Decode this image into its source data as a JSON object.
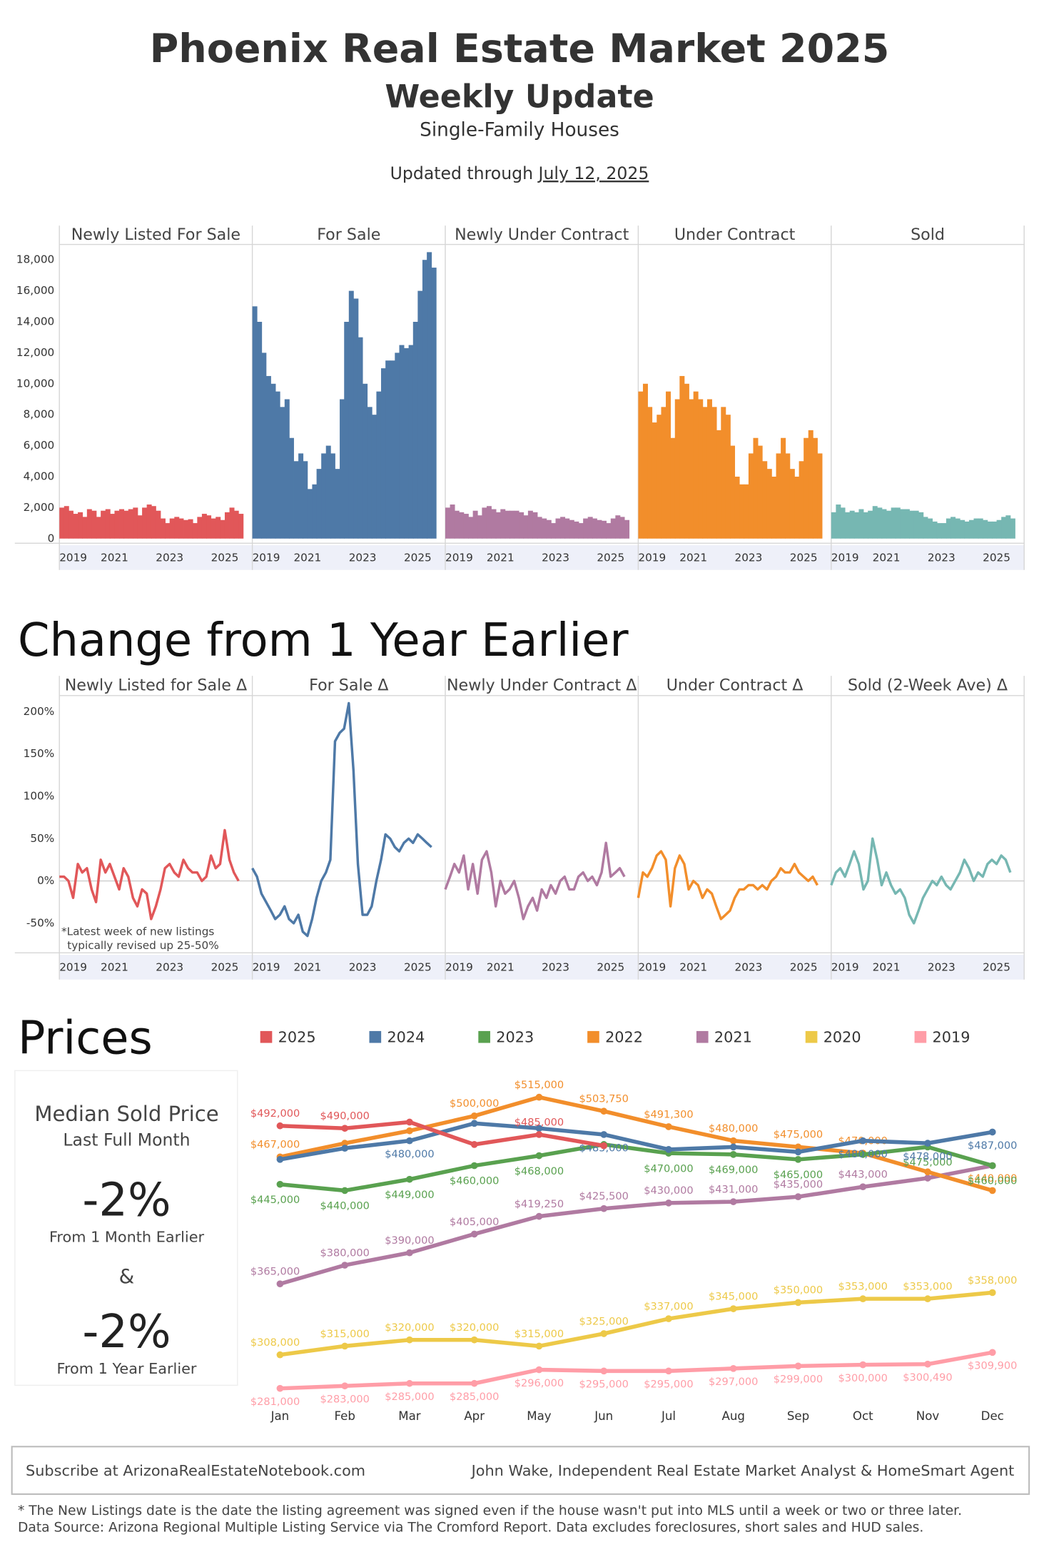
{
  "header": {
    "title": "Phoenix Real Estate Market 2025",
    "subtitle": "Weekly Update",
    "segment": "Single-Family Houses",
    "updated_prefix": "Updated through",
    "updated_date": "July 12, 2025"
  },
  "chart_data": [
    {
      "type": "bar",
      "x": [
        2019,
        2019.17,
        2019.33,
        2019.5,
        2019.67,
        2019.83,
        2020,
        2020.17,
        2020.33,
        2020.5,
        2020.67,
        2020.83,
        2021,
        2021.17,
        2021.33,
        2021.5,
        2021.67,
        2021.83,
        2022,
        2022.17,
        2022.33,
        2022.5,
        2022.67,
        2022.83,
        2023,
        2023.17,
        2023.33,
        2023.5,
        2023.67,
        2023.83,
        2024,
        2024.17,
        2024.33,
        2024.5,
        2024.67,
        2024.83,
        2025,
        2025.17,
        2025.33,
        2025.5
      ],
      "xlim": [
        2019,
        2026
      ],
      "xticks": [
        2019,
        2021,
        2023,
        2025
      ],
      "ylim": [
        -300,
        19000
      ],
      "yticks": [
        0,
        {
          "value": 2000,
          "label": "2,000"
        },
        {
          "value": 4000,
          "label": "4,000"
        },
        {
          "value": 6000,
          "label": "6,000"
        },
        {
          "value": 8000,
          "label": "8,000"
        },
        {
          "value": 10000,
          "label": "10,000"
        },
        {
          "value": 12000,
          "label": "12,000"
        },
        {
          "value": 14000,
          "label": "14,000"
        },
        {
          "value": 16000,
          "label": "16,000"
        },
        {
          "value": 18000,
          "label": "18,000"
        }
      ],
      "grid": false,
      "series": [
        {
          "name": "Newly Listed For Sale",
          "color": "#e15759",
          "values": [
            2000,
            2100,
            1800,
            1600,
            1700,
            1400,
            1900,
            1800,
            1400,
            1800,
            1900,
            1600,
            1800,
            1900,
            1800,
            1900,
            2000,
            1500,
            2000,
            2200,
            2100,
            1800,
            1300,
            1000,
            1300,
            1400,
            1300,
            1200,
            1250,
            1000,
            1400,
            1600,
            1500,
            1300,
            1400,
            1200,
            1700,
            2000,
            1800,
            1600
          ]
        },
        {
          "name": "For Sale",
          "color": "#4e79a7",
          "values": [
            15000,
            14000,
            12000,
            10500,
            10000,
            9500,
            8500,
            9000,
            6500,
            5000,
            5500,
            5000,
            3200,
            3500,
            4500,
            5500,
            6000,
            5500,
            4500,
            9000,
            14000,
            16000,
            15500,
            13000,
            10000,
            8500,
            8000,
            9500,
            11000,
            11500,
            11500,
            12000,
            12500,
            12300,
            12500,
            14000,
            16000,
            18000,
            18500,
            17500
          ]
        },
        {
          "name": "Newly Under Contract",
          "color": "#b07aa1",
          "values": [
            2000,
            2200,
            1800,
            1700,
            1600,
            1400,
            1800,
            1500,
            2000,
            2100,
            1900,
            1700,
            1900,
            1800,
            1800,
            1800,
            1700,
            1500,
            1800,
            1700,
            1400,
            1300,
            1200,
            1000,
            1300,
            1400,
            1300,
            1200,
            1100,
            1000,
            1300,
            1400,
            1300,
            1200,
            1150,
            1000,
            1300,
            1500,
            1400,
            1200
          ]
        },
        {
          "name": "Under Contract",
          "color": "#f28e2b",
          "values": [
            9500,
            10000,
            8500,
            7500,
            8000,
            8500,
            9500,
            6500,
            9000,
            10500,
            10000,
            9000,
            9500,
            9000,
            8500,
            9000,
            8500,
            7000,
            8500,
            8000,
            6000,
            4000,
            3500,
            3500,
            5500,
            6500,
            6000,
            5000,
            4500,
            4000,
            5500,
            6500,
            5500,
            4500,
            4000,
            5000,
            6500,
            7000,
            6500,
            5500
          ]
        },
        {
          "name": "Sold",
          "color": "#76b7b2",
          "values": [
            1700,
            2200,
            2000,
            1700,
            1800,
            1700,
            1900,
            1700,
            1800,
            2100,
            2000,
            1900,
            1800,
            2000,
            2000,
            1900,
            1900,
            1800,
            1800,
            1700,
            1400,
            1300,
            1100,
            1000,
            1000,
            1300,
            1400,
            1300,
            1200,
            1100,
            1200,
            1300,
            1300,
            1200,
            1100,
            1100,
            1200,
            1400,
            1500,
            1300
          ]
        }
      ]
    },
    {
      "type": "line",
      "title": "Change from 1 Year Earlier",
      "annotation": [
        "*Latest week of new listings",
        "typically revised up 25-50%"
      ],
      "x": [
        2019,
        2019.17,
        2019.33,
        2019.5,
        2019.67,
        2019.83,
        2020,
        2020.17,
        2020.33,
        2020.5,
        2020.67,
        2020.83,
        2021,
        2021.17,
        2021.33,
        2021.5,
        2021.67,
        2021.83,
        2022,
        2022.17,
        2022.33,
        2022.5,
        2022.67,
        2022.83,
        2023,
        2023.17,
        2023.33,
        2023.5,
        2023.67,
        2023.83,
        2024,
        2024.17,
        2024.33,
        2024.5,
        2024.67,
        2024.83,
        2025,
        2025.17,
        2025.33,
        2025.5
      ],
      "xlim": [
        2019,
        2026
      ],
      "xticks": [
        2019,
        2021,
        2023,
        2025
      ],
      "ylim": [
        -85,
        219
      ],
      "yticks": [
        {
          "value": -50,
          "label": "-50%"
        },
        {
          "value": 0,
          "label": "0%"
        },
        {
          "value": 50,
          "label": "50%"
        },
        {
          "value": 100,
          "label": "100%"
        },
        {
          "value": 150,
          "label": "150%"
        },
        {
          "value": 200,
          "label": "200%"
        }
      ],
      "grid": false,
      "series": [
        {
          "name": "Newly Listed for Sale Δ",
          "color": "#e15759",
          "values": [
            5,
            5,
            0,
            -20,
            20,
            10,
            15,
            -10,
            -25,
            25,
            10,
            20,
            5,
            -10,
            15,
            5,
            -20,
            -30,
            -10,
            -15,
            -45,
            -30,
            -10,
            15,
            20,
            10,
            5,
            25,
            15,
            10,
            10,
            0,
            5,
            30,
            15,
            20,
            60,
            25,
            10,
            0
          ]
        },
        {
          "name": "For Sale Δ",
          "color": "#4e79a7",
          "values": [
            15,
            5,
            -15,
            -25,
            -35,
            -45,
            -40,
            -30,
            -45,
            -50,
            -40,
            -60,
            -65,
            -45,
            -20,
            0,
            10,
            25,
            165,
            175,
            180,
            210,
            130,
            20,
            -40,
            -40,
            -30,
            0,
            25,
            55,
            50,
            40,
            35,
            45,
            50,
            45,
            55,
            50,
            45,
            40
          ]
        },
        {
          "name": "Newly Under Contract Δ",
          "color": "#b07aa1",
          "values": [
            -10,
            5,
            20,
            10,
            30,
            -10,
            20,
            -15,
            25,
            35,
            10,
            -30,
            0,
            -15,
            -10,
            0,
            -20,
            -45,
            -30,
            -20,
            -35,
            -10,
            -20,
            -5,
            -15,
            0,
            5,
            -10,
            -10,
            5,
            10,
            0,
            5,
            -5,
            10,
            45,
            5,
            10,
            15,
            5
          ]
        },
        {
          "name": "Under Contract Δ",
          "color": "#f28e2b",
          "values": [
            -20,
            10,
            5,
            15,
            30,
            35,
            25,
            -30,
            15,
            30,
            20,
            -10,
            0,
            -5,
            -20,
            -10,
            -15,
            -30,
            -45,
            -40,
            -35,
            -20,
            -10,
            -10,
            -5,
            -5,
            -10,
            -5,
            -10,
            0,
            5,
            15,
            10,
            10,
            20,
            10,
            5,
            0,
            5,
            -5
          ]
        },
        {
          "name": "Sold (2-Week Ave) Δ",
          "color": "#76b7b2",
          "values": [
            -5,
            10,
            15,
            5,
            20,
            35,
            20,
            -10,
            0,
            50,
            25,
            -5,
            10,
            -5,
            -15,
            -10,
            -20,
            -40,
            -50,
            -35,
            -20,
            -10,
            0,
            -5,
            5,
            -5,
            -10,
            0,
            10,
            25,
            15,
            0,
            10,
            5,
            20,
            25,
            20,
            30,
            25,
            10
          ]
        }
      ]
    },
    {
      "type": "line",
      "title": "Prices",
      "categories": [
        "Jan",
        "Feb",
        "Mar",
        "Apr",
        "May",
        "Jun",
        "Jul",
        "Aug",
        "Sep",
        "Oct",
        "Nov",
        "Dec"
      ],
      "ylim": [
        270000,
        530000
      ],
      "series": [
        {
          "name": "2025",
          "color": "#e15759",
          "values": [
            492000,
            490000,
            495000,
            477000,
            485000,
            476000,
            null,
            null,
            null,
            null,
            null,
            null
          ],
          "value_labels": [
            "$492,000",
            "$490,000",
            null,
            null,
            "$485,000",
            null,
            null,
            null,
            null,
            null,
            null,
            null
          ]
        },
        {
          "name": "2024",
          "color": "#4e79a7",
          "values": [
            465000,
            474000,
            480000,
            494000,
            490000,
            485000,
            473000,
            475000,
            471000,
            480000,
            478000,
            487000
          ],
          "value_labels": [
            null,
            null,
            "$480,000",
            null,
            null,
            "$485,000",
            null,
            null,
            null,
            "$480,000",
            "$478,000",
            "$487,000"
          ]
        },
        {
          "name": "2023",
          "color": "#59a14f",
          "values": [
            445000,
            440000,
            449000,
            460000,
            468000,
            477000,
            470000,
            469000,
            465000,
            469000,
            475000,
            460000
          ],
          "value_labels": [
            "$445,000",
            "$440,000",
            "$449,000",
            "$460,000",
            "$468,000",
            null,
            "$470,000",
            "$469,000",
            "$465,000",
            null,
            "$475,000",
            "$460,000"
          ]
        },
        {
          "name": "2022",
          "color": "#f28e2b",
          "values": [
            467000,
            478000,
            488000,
            500000,
            515000,
            503750,
            491300,
            480000,
            475000,
            470000,
            455000,
            440000
          ],
          "value_labels": [
            "$467,000",
            null,
            null,
            "$500,000",
            "$515,000",
            "$503,750",
            "$491,300",
            "$480,000",
            "$475,000",
            "$470,000",
            null,
            "$440,000"
          ]
        },
        {
          "name": "2021",
          "color": "#b07aa1",
          "values": [
            365000,
            380000,
            390000,
            405000,
            419250,
            425500,
            430000,
            431000,
            435000,
            443000,
            450000,
            460000
          ],
          "value_labels": [
            "$365,000",
            "$380,000",
            "$390,000",
            "$405,000",
            "$419,250",
            "$425,500",
            "$430,000",
            "$431,000",
            "$435,000",
            "$443,000",
            null,
            null
          ]
        },
        {
          "name": "2020",
          "color": "#edc948",
          "values": [
            308000,
            315000,
            320000,
            320000,
            315000,
            325000,
            337000,
            345000,
            350000,
            353000,
            353000,
            358000
          ],
          "value_labels": [
            "$308,000",
            "$315,000",
            "$320,000",
            "$320,000",
            "$315,000",
            "$325,000",
            "$337,000",
            "$345,000",
            "$350,000",
            "$353,000",
            "$353,000",
            "$358,000"
          ]
        },
        {
          "name": "2019",
          "color": "#ff9da7",
          "values": [
            281000,
            283000,
            285000,
            285000,
            296000,
            295000,
            295000,
            297000,
            299000,
            300000,
            300490,
            309900
          ],
          "value_labels": [
            "$281,000",
            "$283,000",
            "$285,000",
            "$285,000",
            "$296,000",
            "$295,000",
            "$295,000",
            "$297,000",
            "$299,000",
            "$300,000",
            "$300,490",
            "$309,900"
          ]
        }
      ]
    }
  ],
  "kpi": {
    "title": "Median Sold Price",
    "subtitle": "Last Full Month",
    "month_change": "-2%",
    "month_caption": "From 1 Month Earlier",
    "joiner": "&",
    "year_change": "-2%",
    "year_caption": "From 1 Year Earlier"
  },
  "footer": {
    "subscribe": "Subscribe at ArizonaRealEstateNotebook.com",
    "author": "John Wake, Independent Real Estate Market Analyst & HomeSmart Agent",
    "notes": [
      "* The New Listings date is the date the listing agreement was signed even if the house wasn't put into MLS until a week or two or three later.",
      "Data Source: Arizona Regional Multiple Listing Service via The Cromford Report. Data excludes foreclosures, short sales and HUD sales."
    ]
  }
}
